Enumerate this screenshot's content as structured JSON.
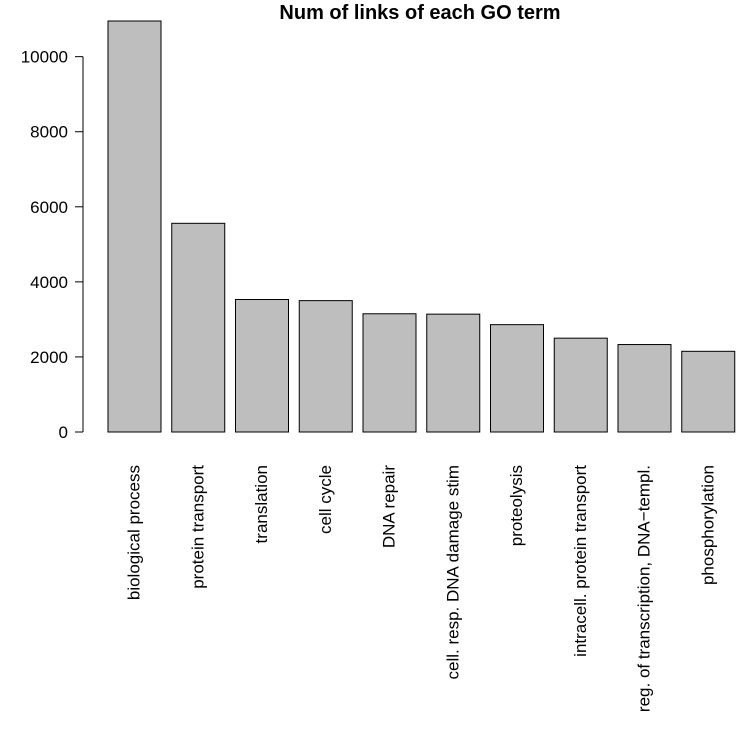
{
  "chart_data": {
    "type": "bar",
    "title": "Num of links of each GO term",
    "xlabel": "",
    "ylabel": "",
    "categories": [
      "biological process",
      "protein transport",
      "translation",
      "cell cycle",
      "DNA repair",
      "cell. resp. DNA damage stim",
      "proteolysis",
      "intracell. protein transport",
      "reg. of transcription, DNA−templ.",
      "phosphorylation"
    ],
    "values": [
      10950,
      5560,
      3530,
      3500,
      3150,
      3140,
      2860,
      2500,
      2330,
      2150
    ],
    "ylim": [
      0,
      10950
    ],
    "yticks": [
      0,
      2000,
      4000,
      6000,
      8000,
      10000
    ],
    "grid": false,
    "legend": "none",
    "bar_color": "#bebebe",
    "edge_color": "#000000"
  }
}
